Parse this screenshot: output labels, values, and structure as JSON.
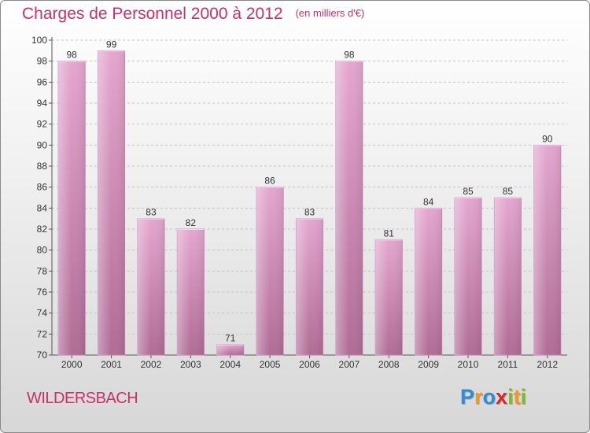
{
  "title": "Charges de Personnel 2000 à 2012",
  "subtitle": "(en milliers d'€)",
  "commune": "WILDERSBACH",
  "logo": {
    "letters": [
      "P",
      "r",
      "o",
      "x",
      "i",
      "t",
      "i"
    ],
    "colors": [
      "#2a8fd8",
      "#f29a1a",
      "#2a8fd8",
      "#d8262c",
      "#7cbd2a",
      "#f29a1a",
      "#7cbd2a"
    ]
  },
  "colors": {
    "bar_light": "#e4a6cf",
    "bar_dark": "#b06c95",
    "title": "#c8306a"
  },
  "chart_data": {
    "type": "bar",
    "categories": [
      "2000",
      "2001",
      "2002",
      "2003",
      "2004",
      "2005",
      "2006",
      "2007",
      "2008",
      "2009",
      "2010",
      "2011",
      "2012"
    ],
    "values": [
      98,
      99,
      83,
      82,
      71,
      86,
      83,
      98,
      81,
      84,
      85,
      85,
      90
    ],
    "data_labels": [
      "98",
      "99",
      "83",
      "82",
      "71",
      "86",
      "83",
      "98",
      "81",
      "84",
      "85",
      "85",
      "90"
    ],
    "ylim": [
      70,
      100
    ],
    "yticks": [
      "70",
      "72",
      "74",
      "76",
      "78",
      "80",
      "82",
      "84",
      "86",
      "88",
      "90",
      "92",
      "94",
      "96",
      "98",
      "100"
    ],
    "grid": true
  }
}
